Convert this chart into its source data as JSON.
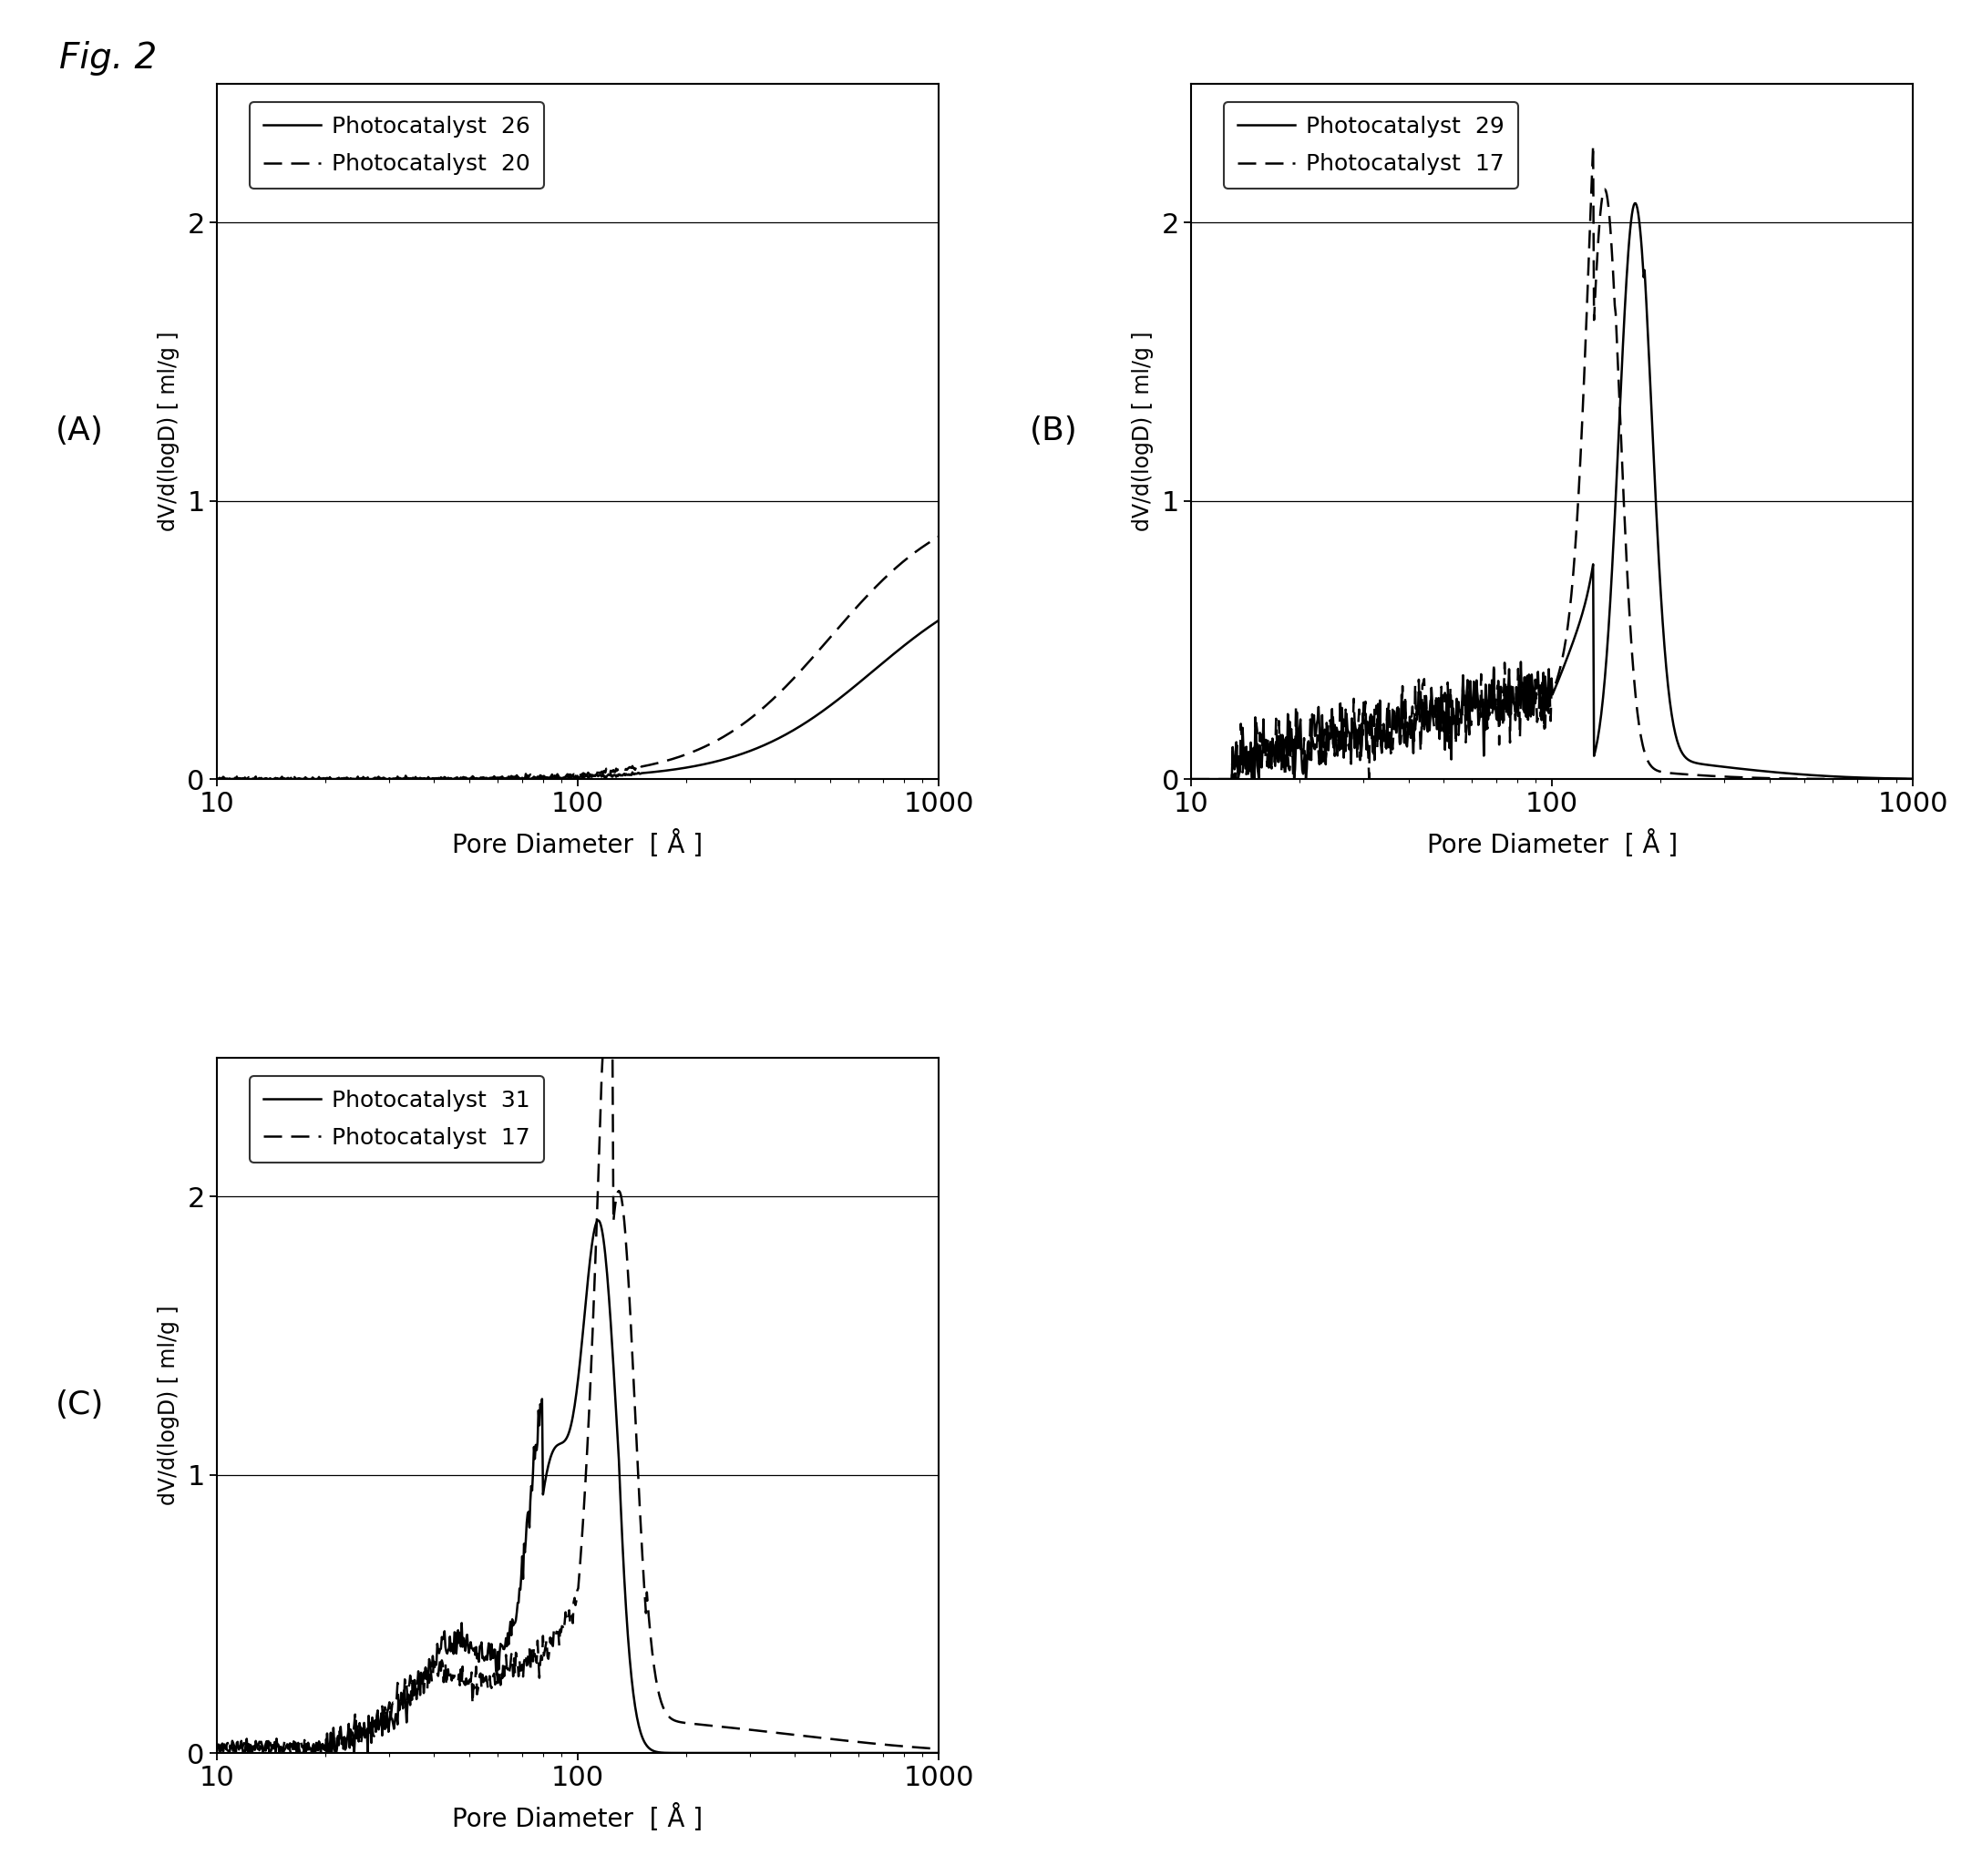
{
  "fig_label": "Fig. 2",
  "panels": [
    {
      "label": "(A)",
      "legend_solid": "Photocatalyst  26",
      "legend_dashed": "Photocatalyst  20",
      "xlabel": "Pore Diameter  [ Å ]",
      "ylabel": "dV/d(logD) [ ml/g ]",
      "xlim": [
        10,
        1000
      ],
      "ylim": [
        0,
        2.5
      ],
      "yticks": [
        0,
        1,
        2
      ],
      "curve_type": "A"
    },
    {
      "label": "(B)",
      "legend_solid": "Photocatalyst  29",
      "legend_dashed": "Photocatalyst  17",
      "xlabel": "Pore Diameter  [ Å ]",
      "ylabel": "dV/d(logD) [ ml/g ]",
      "xlim": [
        10,
        1000
      ],
      "ylim": [
        0,
        2.5
      ],
      "yticks": [
        0,
        1,
        2
      ],
      "curve_type": "B"
    },
    {
      "label": "(C)",
      "legend_solid": "Photocatalyst  31",
      "legend_dashed": "Photocatalyst  17",
      "xlabel": "Pore Diameter  [ Å ]",
      "ylabel": "dV/d(logD) [ ml/g ]",
      "xlim": [
        10,
        1000
      ],
      "ylim": [
        0,
        2.5
      ],
      "yticks": [
        0,
        1,
        2
      ],
      "curve_type": "C"
    }
  ],
  "background_color": "#ffffff"
}
